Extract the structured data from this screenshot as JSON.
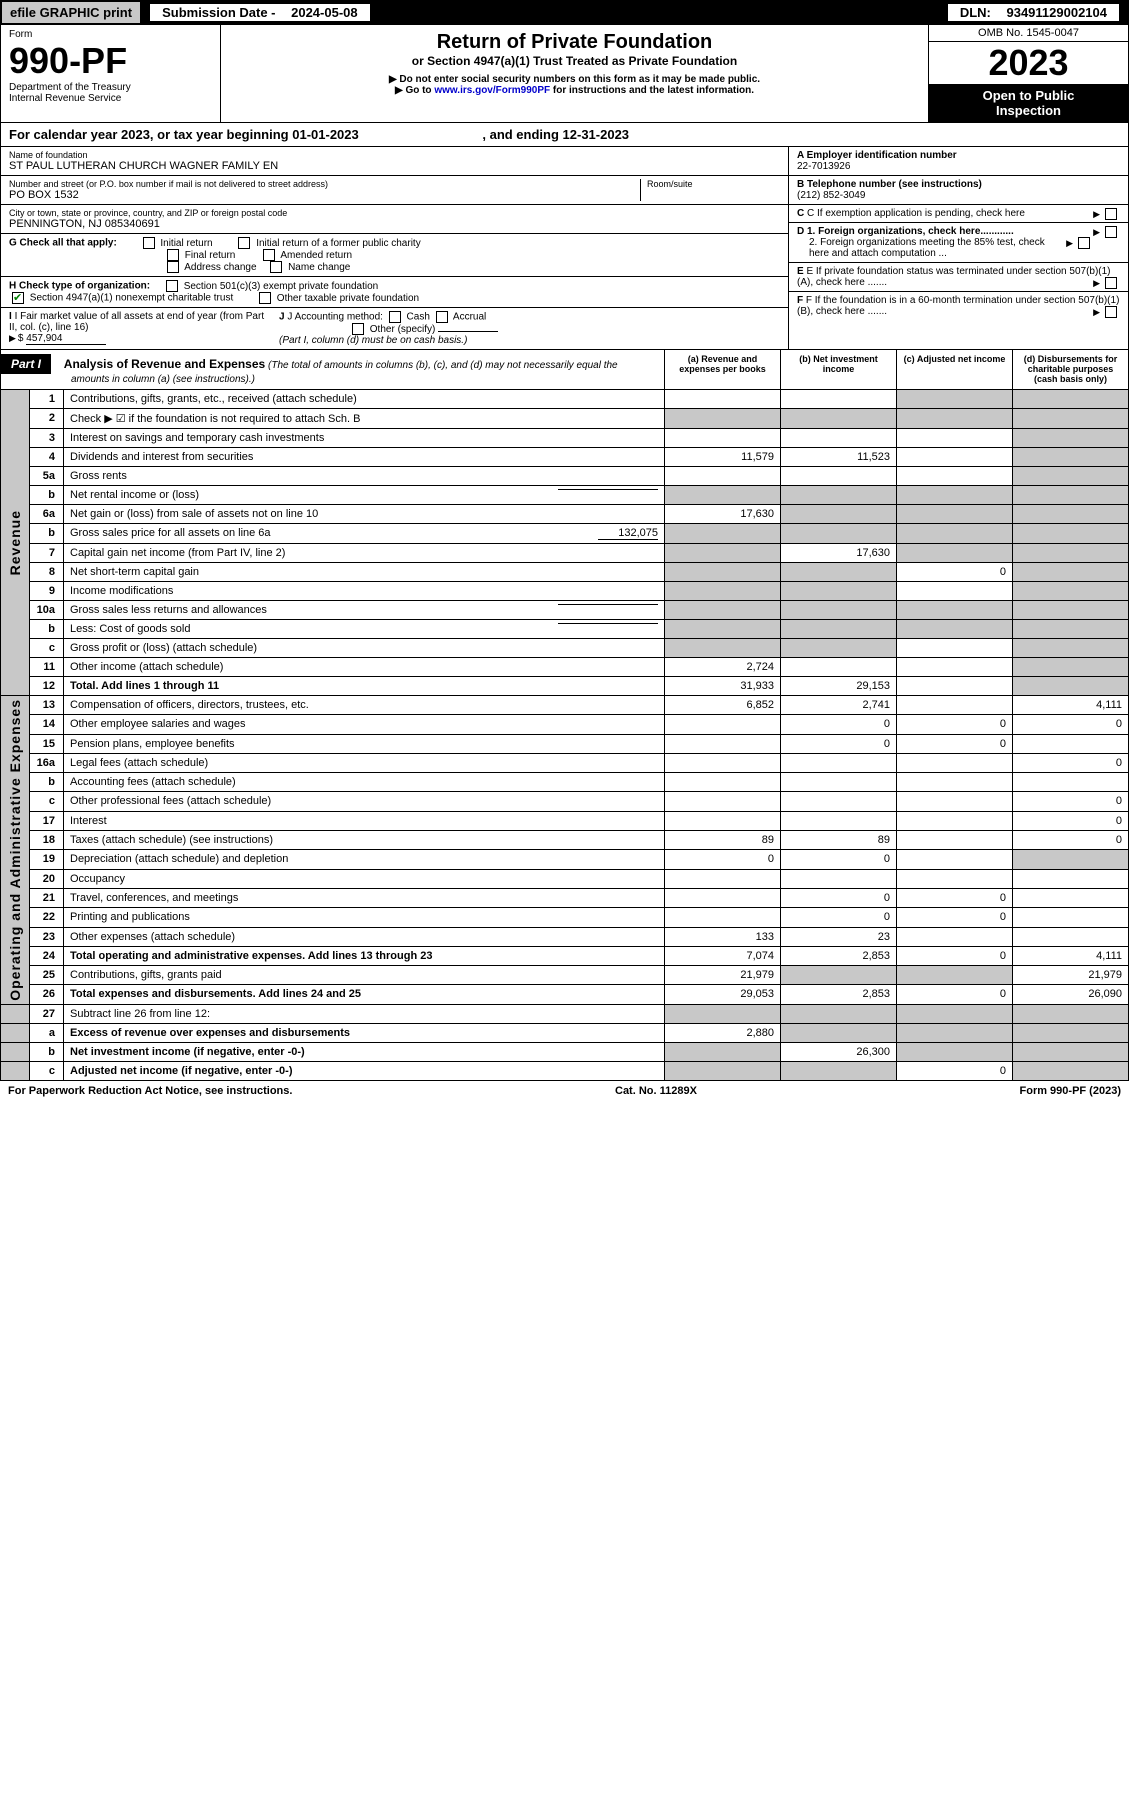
{
  "header": {
    "efile": "efile GRAPHIC print",
    "sub_date_label": "Submission Date - ",
    "sub_date": "2024-05-08",
    "dln_label": "DLN: ",
    "dln": "93491129002104"
  },
  "form": {
    "form_word": "Form",
    "number": "990-PF",
    "dept": "Department of the Treasury\nInternal Revenue Service",
    "title": "Return of Private Foundation",
    "subtitle": "or Section 4947(a)(1) Trust Treated as Private Foundation",
    "instr1": "▶ Do not enter social security numbers on this form as it may be made public.",
    "instr2_pre": "▶ Go to ",
    "instr2_link": "www.irs.gov/Form990PF",
    "instr2_post": " for instructions and the latest information.",
    "omb": "OMB No. 1545-0047",
    "year": "2023",
    "open": "Open to Public\nInspection"
  },
  "cal_year": {
    "pre": "For calendar year 2023, or tax year beginning ",
    "begin": "01-01-2023",
    "mid": " , and ending ",
    "end": "12-31-2023"
  },
  "ident": {
    "name_label": "Name of foundation",
    "name": "ST PAUL LUTHERAN CHURCH WAGNER FAMILY EN",
    "addr_label": "Number and street (or P.O. box number if mail is not delivered to street address)",
    "addr": "PO BOX 1532",
    "room_label": "Room/suite",
    "city_label": "City or town, state or province, country, and ZIP or foreign postal code",
    "city": "PENNINGTON, NJ 085340691",
    "a_label": "A Employer identification number",
    "a_val": "22-7013926",
    "b_label": "B Telephone number (see instructions)",
    "b_val": "(212) 852-3049",
    "c_label": "C If exemption application is pending, check here",
    "d1_label": "D 1. Foreign organizations, check here............",
    "d2_label": "2. Foreign organizations meeting the 85% test, check here and attach computation ...",
    "e_label": "E If private foundation status was terminated under section 507(b)(1)(A), check here .......",
    "f_label": "F If the foundation is in a 60-month termination under section 507(b)(1)(B), check here .......",
    "g_label": "G Check all that apply:",
    "g_opts": [
      "Initial return",
      "Initial return of a former public charity",
      "Final return",
      "Amended return",
      "Address change",
      "Name change"
    ],
    "h_label": "H Check type of organization:",
    "h_opt1": "Section 501(c)(3) exempt private foundation",
    "h_opt2": "Section 4947(a)(1) nonexempt charitable trust",
    "h_opt3": "Other taxable private foundation",
    "i_label": "I Fair market value of all assets at end of year (from Part II, col. (c), line 16)",
    "i_val": "457,904",
    "j_label": "J Accounting method:",
    "j_opts": [
      "Cash",
      "Accrual",
      "Other (specify)"
    ],
    "j_note": "(Part I, column (d) must be on cash basis.)"
  },
  "part1": {
    "label": "Part I",
    "title": "Analysis of Revenue and Expenses",
    "note": "(The total of amounts in columns (b), (c), and (d) may not necessarily equal the amounts in column (a) (see instructions).)",
    "cols": [
      "(a) Revenue and expenses per books",
      "(b) Net investment income",
      "(c) Adjusted net income",
      "(d) Disbursements for charitable purposes (cash basis only)"
    ]
  },
  "side_labels": {
    "rev": "Revenue",
    "exp": "Operating and Administrative Expenses"
  },
  "rows": [
    {
      "ln": "1",
      "desc": "Contributions, gifts, grants, etc., received (attach schedule)",
      "a": "",
      "b": "",
      "c": "sh",
      "d": "sh"
    },
    {
      "ln": "2",
      "desc": "Check ▶ ☑ if the foundation is not required to attach Sch. B",
      "a": "sh",
      "b": "sh",
      "c": "sh",
      "d": "sh",
      "bold_not": true
    },
    {
      "ln": "3",
      "desc": "Interest on savings and temporary cash investments",
      "a": "",
      "b": "",
      "c": "",
      "d": "sh"
    },
    {
      "ln": "4",
      "desc": "Dividends and interest from securities",
      "a": "11,579",
      "b": "11,523",
      "c": "",
      "d": "sh"
    },
    {
      "ln": "5a",
      "desc": "Gross rents",
      "a": "",
      "b": "",
      "c": "",
      "d": "sh"
    },
    {
      "ln": "b",
      "desc": "Net rental income or (loss)",
      "a": "sh",
      "b": "sh",
      "c": "sh",
      "d": "sh",
      "inline_blank": true
    },
    {
      "ln": "6a",
      "desc": "Net gain or (loss) from sale of assets not on line 10",
      "a": "17,630",
      "b": "sh",
      "c": "sh",
      "d": "sh"
    },
    {
      "ln": "b",
      "desc": "Gross sales price for all assets on line 6a",
      "a": "sh",
      "b": "sh",
      "c": "sh",
      "d": "sh",
      "inline_val": "132,075"
    },
    {
      "ln": "7",
      "desc": "Capital gain net income (from Part IV, line 2)",
      "a": "sh",
      "b": "17,630",
      "c": "sh",
      "d": "sh"
    },
    {
      "ln": "8",
      "desc": "Net short-term capital gain",
      "a": "sh",
      "b": "sh",
      "c": "0",
      "d": "sh"
    },
    {
      "ln": "9",
      "desc": "Income modifications",
      "a": "sh",
      "b": "sh",
      "c": "",
      "d": "sh"
    },
    {
      "ln": "10a",
      "desc": "Gross sales less returns and allowances",
      "a": "sh",
      "b": "sh",
      "c": "sh",
      "d": "sh",
      "inline_blank": true
    },
    {
      "ln": "b",
      "desc": "Less: Cost of goods sold",
      "a": "sh",
      "b": "sh",
      "c": "sh",
      "d": "sh",
      "inline_blank": true
    },
    {
      "ln": "c",
      "desc": "Gross profit or (loss) (attach schedule)",
      "a": "sh",
      "b": "sh",
      "c": "",
      "d": "sh"
    },
    {
      "ln": "11",
      "desc": "Other income (attach schedule)",
      "a": "2,724",
      "b": "",
      "c": "",
      "d": "sh"
    },
    {
      "ln": "12",
      "desc": "Total. Add lines 1 through 11",
      "a": "31,933",
      "b": "29,153",
      "c": "",
      "d": "sh",
      "bold": true
    }
  ],
  "exp_rows": [
    {
      "ln": "13",
      "desc": "Compensation of officers, directors, trustees, etc.",
      "a": "6,852",
      "b": "2,741",
      "c": "",
      "d": "4,111"
    },
    {
      "ln": "14",
      "desc": "Other employee salaries and wages",
      "a": "",
      "b": "0",
      "c": "0",
      "d": "0"
    },
    {
      "ln": "15",
      "desc": "Pension plans, employee benefits",
      "a": "",
      "b": "0",
      "c": "0",
      "d": ""
    },
    {
      "ln": "16a",
      "desc": "Legal fees (attach schedule)",
      "a": "",
      "b": "",
      "c": "",
      "d": "0"
    },
    {
      "ln": "b",
      "desc": "Accounting fees (attach schedule)",
      "a": "",
      "b": "",
      "c": "",
      "d": ""
    },
    {
      "ln": "c",
      "desc": "Other professional fees (attach schedule)",
      "a": "",
      "b": "",
      "c": "",
      "d": "0"
    },
    {
      "ln": "17",
      "desc": "Interest",
      "a": "",
      "b": "",
      "c": "",
      "d": "0"
    },
    {
      "ln": "18",
      "desc": "Taxes (attach schedule) (see instructions)",
      "a": "89",
      "b": "89",
      "c": "",
      "d": "0"
    },
    {
      "ln": "19",
      "desc": "Depreciation (attach schedule) and depletion",
      "a": "0",
      "b": "0",
      "c": "",
      "d": "sh"
    },
    {
      "ln": "20",
      "desc": "Occupancy",
      "a": "",
      "b": "",
      "c": "",
      "d": ""
    },
    {
      "ln": "21",
      "desc": "Travel, conferences, and meetings",
      "a": "",
      "b": "0",
      "c": "0",
      "d": ""
    },
    {
      "ln": "22",
      "desc": "Printing and publications",
      "a": "",
      "b": "0",
      "c": "0",
      "d": ""
    },
    {
      "ln": "23",
      "desc": "Other expenses (attach schedule)",
      "a": "133",
      "b": "23",
      "c": "",
      "d": ""
    },
    {
      "ln": "24",
      "desc": "Total operating and administrative expenses. Add lines 13 through 23",
      "a": "7,074",
      "b": "2,853",
      "c": "0",
      "d": "4,111",
      "bold": true
    },
    {
      "ln": "25",
      "desc": "Contributions, gifts, grants paid",
      "a": "21,979",
      "b": "sh",
      "c": "sh",
      "d": "21,979"
    },
    {
      "ln": "26",
      "desc": "Total expenses and disbursements. Add lines 24 and 25",
      "a": "29,053",
      "b": "2,853",
      "c": "0",
      "d": "26,090",
      "bold": true
    }
  ],
  "sub_rows": [
    {
      "ln": "27",
      "desc": "Subtract line 26 from line 12:",
      "a": "sh",
      "b": "sh",
      "c": "sh",
      "d": "sh"
    },
    {
      "ln": "a",
      "desc": "Excess of revenue over expenses and disbursements",
      "a": "2,880",
      "b": "sh",
      "c": "sh",
      "d": "sh",
      "bold": true
    },
    {
      "ln": "b",
      "desc": "Net investment income (if negative, enter -0-)",
      "a": "sh",
      "b": "26,300",
      "c": "sh",
      "d": "sh",
      "bold": true
    },
    {
      "ln": "c",
      "desc": "Adjusted net income (if negative, enter -0-)",
      "a": "sh",
      "b": "sh",
      "c": "0",
      "d": "sh",
      "bold": true
    }
  ],
  "footer": {
    "left": "For Paperwork Reduction Act Notice, see instructions.",
    "mid": "Cat. No. 11289X",
    "right": "Form 990-PF (2023)"
  },
  "colors": {
    "shade": "#c8c8c8",
    "link": "#0000cc",
    "check": "#008000"
  }
}
